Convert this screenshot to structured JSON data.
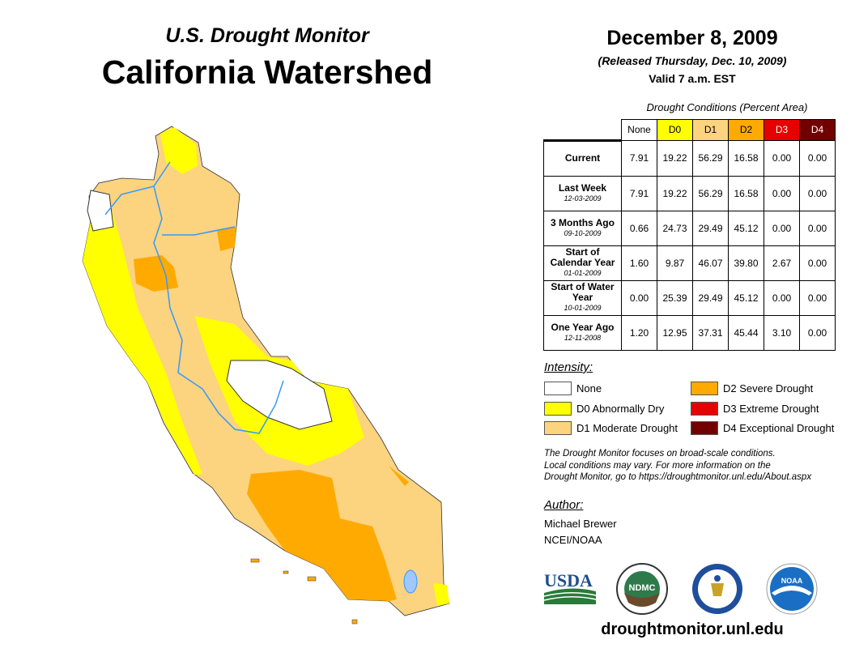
{
  "header": {
    "subtitle": "U.S. Drought Monitor",
    "title": "California Watershed",
    "date": "December 8, 2009",
    "released": "(Released Thursday, Dec. 10, 2009)",
    "valid": "Valid 7 a.m. EST"
  },
  "table": {
    "caption": "Drought Conditions (Percent Area)",
    "columns": [
      "None",
      "D0",
      "D1",
      "D2",
      "D3",
      "D4"
    ],
    "rows": [
      {
        "label": "Current",
        "sub": "",
        "values": [
          "7.91",
          "19.22",
          "56.29",
          "16.58",
          "0.00",
          "0.00"
        ]
      },
      {
        "label": "Last Week",
        "sub": "12-03-2009",
        "values": [
          "7.91",
          "19.22",
          "56.29",
          "16.58",
          "0.00",
          "0.00"
        ]
      },
      {
        "label": "3 Months Ago",
        "sub": "09-10-2009",
        "values": [
          "0.66",
          "24.73",
          "29.49",
          "45.12",
          "0.00",
          "0.00"
        ]
      },
      {
        "label": "Start of Calendar Year",
        "sub": "01-01-2009",
        "values": [
          "1.60",
          "9.87",
          "46.07",
          "39.80",
          "2.67",
          "0.00"
        ]
      },
      {
        "label": "Start of Water Year",
        "sub": "10-01-2009",
        "values": [
          "0.00",
          "25.39",
          "29.49",
          "45.12",
          "0.00",
          "0.00"
        ]
      },
      {
        "label": "One Year Ago",
        "sub": "12-11-2008",
        "values": [
          "1.20",
          "12.95",
          "37.31",
          "45.44",
          "3.10",
          "0.00"
        ]
      }
    ]
  },
  "colors": {
    "none": "#ffffff",
    "d0": "#ffff00",
    "d1": "#fcd37f",
    "d2": "#ffaa00",
    "d3": "#e60000",
    "d4": "#730000",
    "river": "#3399ff"
  },
  "legend": {
    "title": "Intensity:",
    "items": [
      "None",
      "D0 Abnormally Dry",
      "D1 Moderate Drought",
      "D2 Severe Drought",
      "D3 Extreme Drought",
      "D4 Exceptional Drought"
    ]
  },
  "note": [
    "The Drought Monitor focuses on broad-scale conditions.",
    "Local conditions may vary. For more information on the",
    "Drought Monitor, go to https://droughtmonitor.unl.edu/About.aspx"
  ],
  "author": {
    "label": "Author:",
    "name": "Michael Brewer",
    "org": "NCEI/NOAA"
  },
  "logos": {
    "usda": "USDA",
    "ndmc": "NDMC",
    "noaa": "NOAA"
  },
  "url": "droughtmonitor.unl.edu"
}
